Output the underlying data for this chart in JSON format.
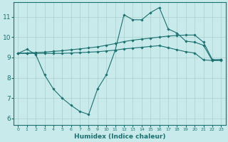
{
  "xlabel": "Humidex (Indice chaleur)",
  "bg_color": "#c8eaea",
  "grid_color": "#aacfcf",
  "line_color": "#1a7070",
  "xlim": [
    -0.5,
    23.5
  ],
  "ylim": [
    5.7,
    11.7
  ],
  "yticks": [
    6,
    7,
    8,
    9,
    10,
    11
  ],
  "xticks": [
    0,
    1,
    2,
    3,
    4,
    5,
    6,
    7,
    8,
    9,
    10,
    11,
    12,
    13,
    14,
    15,
    16,
    17,
    18,
    19,
    20,
    21,
    22,
    23
  ],
  "series1_x": [
    0,
    1,
    2,
    3,
    4,
    5,
    6,
    7,
    8,
    9,
    10,
    11,
    12,
    13,
    14,
    15,
    16,
    17,
    18,
    19,
    20,
    21,
    22,
    23
  ],
  "series1_y": [
    9.2,
    9.4,
    9.15,
    8.15,
    7.45,
    7.0,
    6.65,
    6.35,
    6.2,
    7.45,
    8.15,
    9.35,
    11.1,
    10.85,
    10.85,
    11.2,
    11.45,
    10.4,
    10.2,
    9.8,
    9.75,
    9.6,
    8.85,
    8.9
  ],
  "series2_x": [
    0,
    1,
    2,
    3,
    4,
    5,
    6,
    7,
    8,
    9,
    10,
    11,
    12,
    13,
    14,
    15,
    16,
    17,
    18,
    19,
    20,
    21,
    22,
    23
  ],
  "series2_y": [
    9.2,
    9.22,
    9.24,
    9.26,
    9.3,
    9.33,
    9.38,
    9.42,
    9.47,
    9.52,
    9.6,
    9.68,
    9.78,
    9.85,
    9.9,
    9.95,
    10.0,
    10.05,
    10.08,
    10.1,
    10.1,
    9.75,
    8.9,
    8.88
  ],
  "series3_x": [
    0,
    1,
    2,
    3,
    4,
    5,
    6,
    7,
    8,
    9,
    10,
    11,
    12,
    13,
    14,
    15,
    16,
    17,
    18,
    19,
    20,
    21,
    22,
    23
  ],
  "series3_y": [
    9.2,
    9.2,
    9.2,
    9.2,
    9.2,
    9.2,
    9.22,
    9.24,
    9.26,
    9.28,
    9.32,
    9.36,
    9.42,
    9.46,
    9.5,
    9.54,
    9.58,
    9.48,
    9.38,
    9.28,
    9.22,
    8.88,
    8.85,
    8.85
  ]
}
